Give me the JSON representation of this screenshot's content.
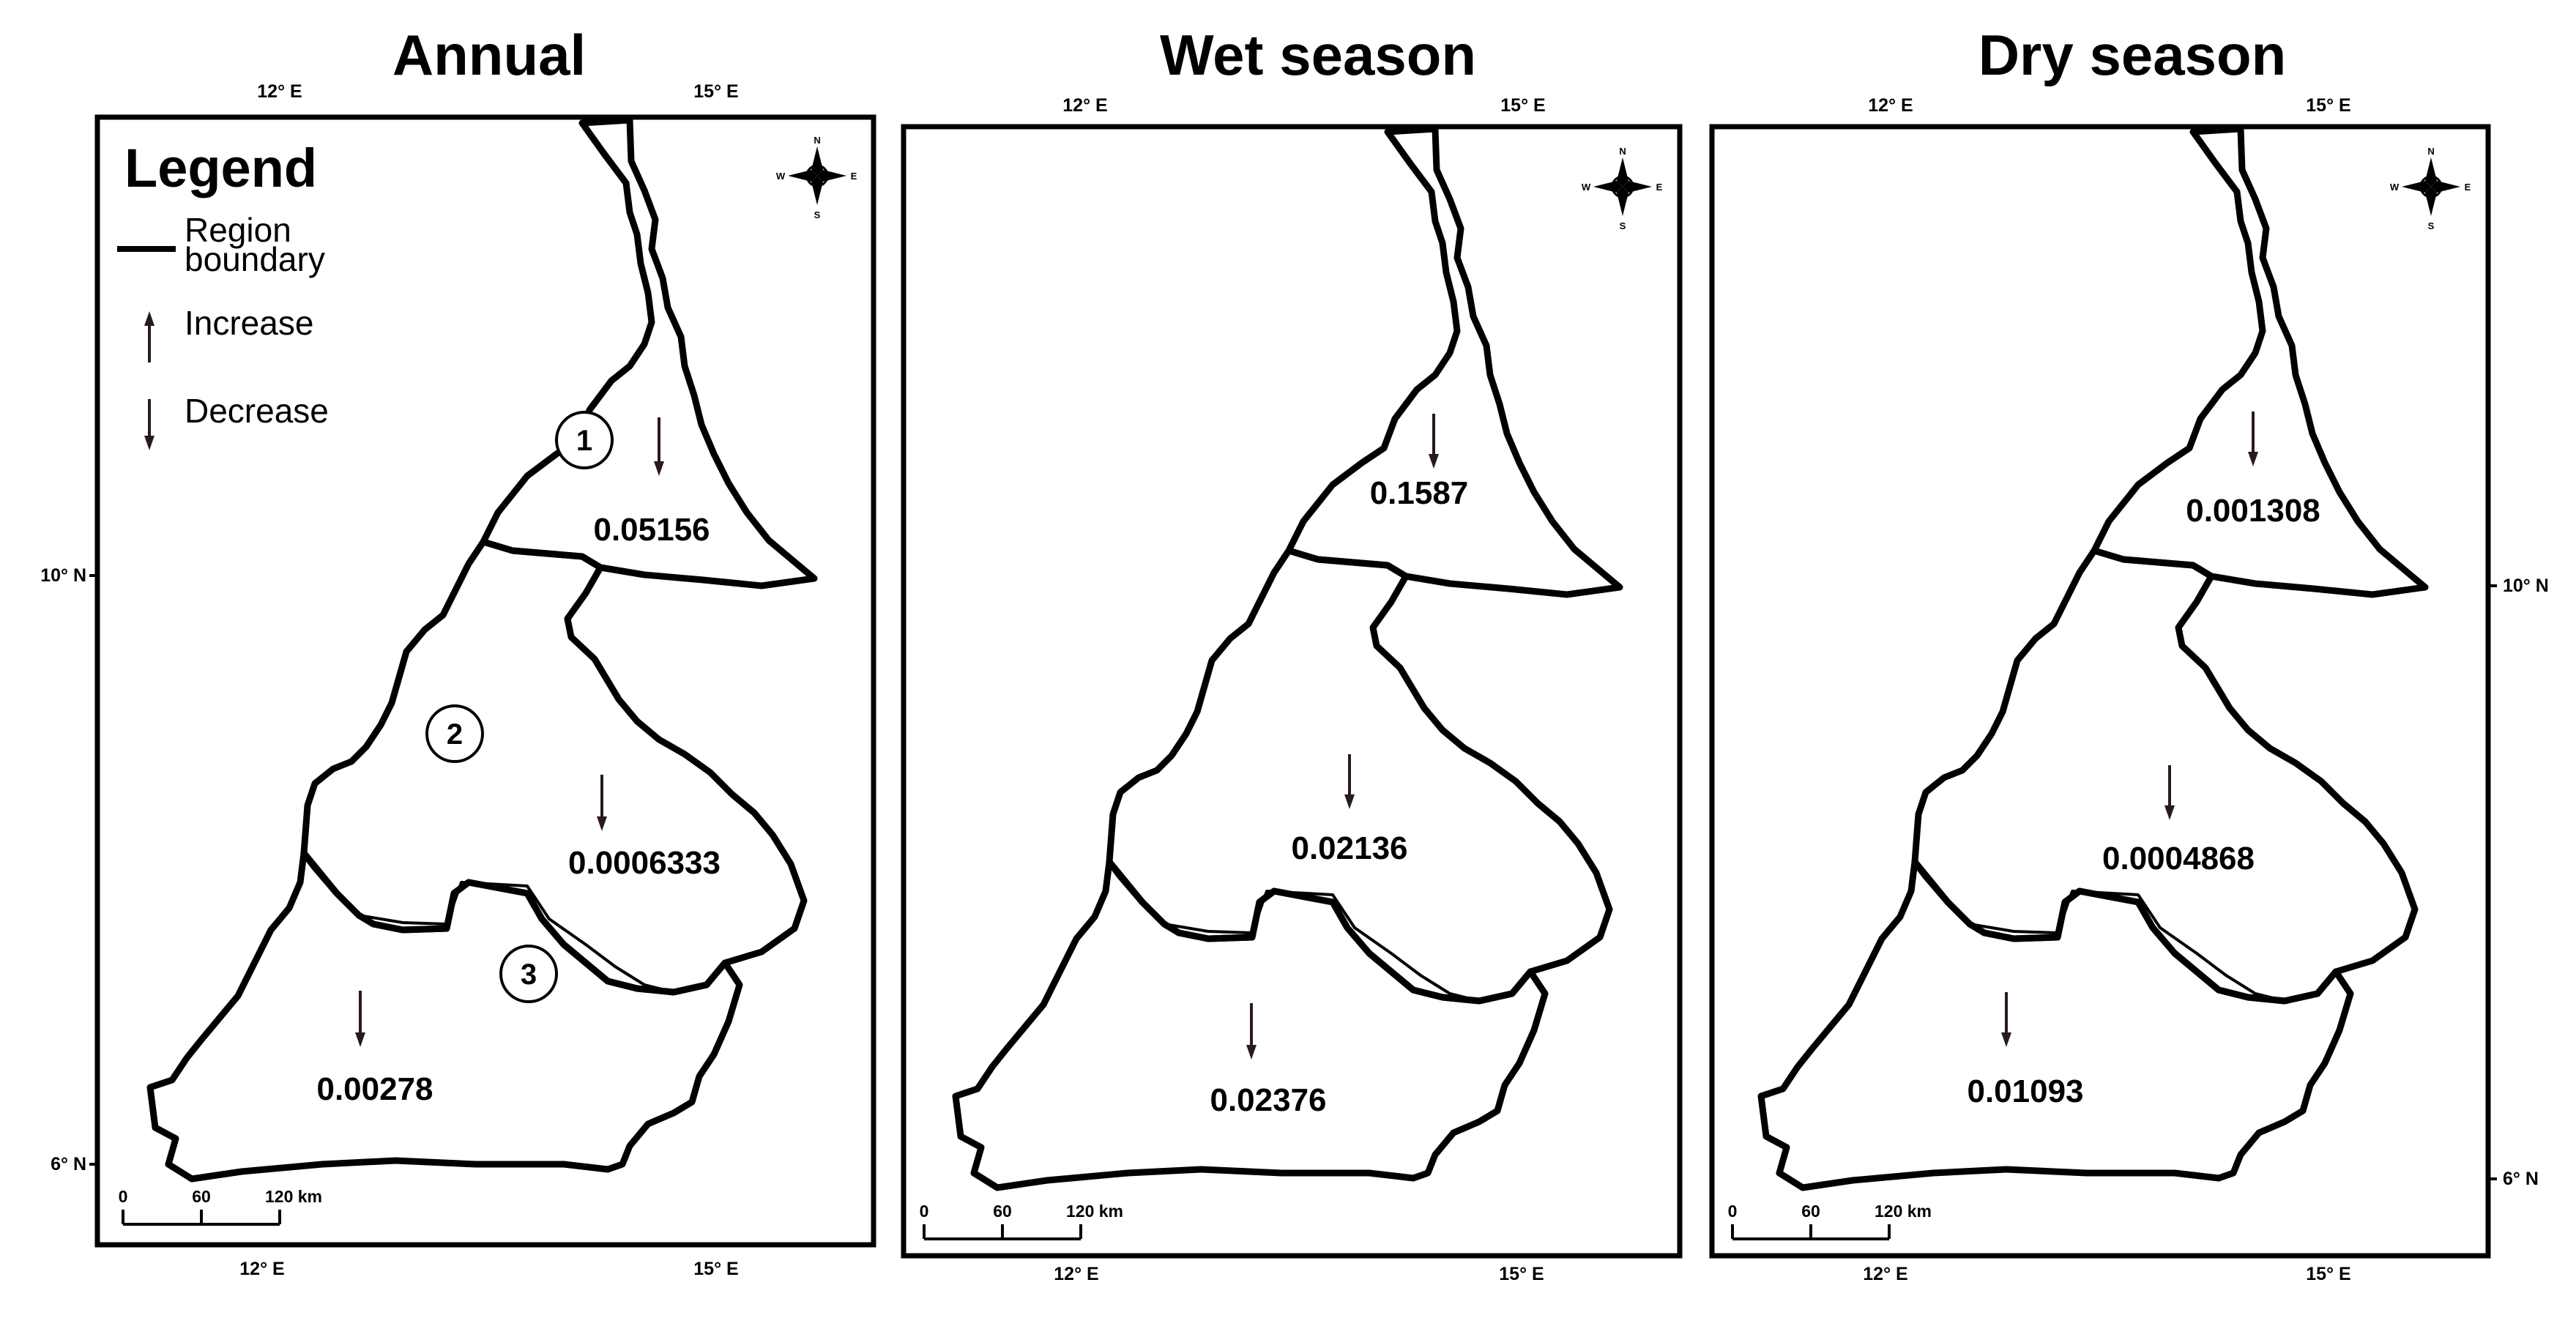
{
  "panels": [
    {
      "title": "Annual",
      "lon_ticks": [
        "12° E",
        "15° E"
      ],
      "lat_ticks": [
        "10° N",
        "6° N"
      ],
      "values": [
        "0.05156",
        "0.0006333",
        "0.00278"
      ],
      "trends": [
        "Decrease",
        "Decrease",
        "Decrease"
      ]
    },
    {
      "title": "Wet season",
      "lon_ticks": [
        "12° E",
        "15° E"
      ],
      "lat_ticks": [],
      "values": [
        "0.1587",
        "0.02136",
        "0.02376"
      ],
      "trends": [
        "Decrease",
        "Decrease",
        "Decrease"
      ]
    },
    {
      "title": "Dry season",
      "lon_ticks": [
        "12° E",
        "15° E"
      ],
      "lat_ticks": [
        "10° N",
        "6° N"
      ],
      "values": [
        "0.001308",
        "0.0004868",
        "0.01093"
      ],
      "trends": [
        "Decrease",
        "Decrease",
        "Decrease"
      ]
    }
  ],
  "legend": {
    "title": "Legend",
    "boundary_label_line1": "Region",
    "boundary_label_line2": "boundary",
    "increase_label": "Increase",
    "decrease_label": "Decrease"
  },
  "region_numbers": [
    "1",
    "2",
    "3"
  ],
  "compass": {
    "n": "N",
    "s": "S",
    "e": "E",
    "w": "W"
  },
  "scale_bar": {
    "labels": [
      "0",
      "60",
      "120 km"
    ]
  },
  "colors": {
    "arrow": "#2a1a1a",
    "line": "#000000",
    "background": "#ffffff"
  }
}
